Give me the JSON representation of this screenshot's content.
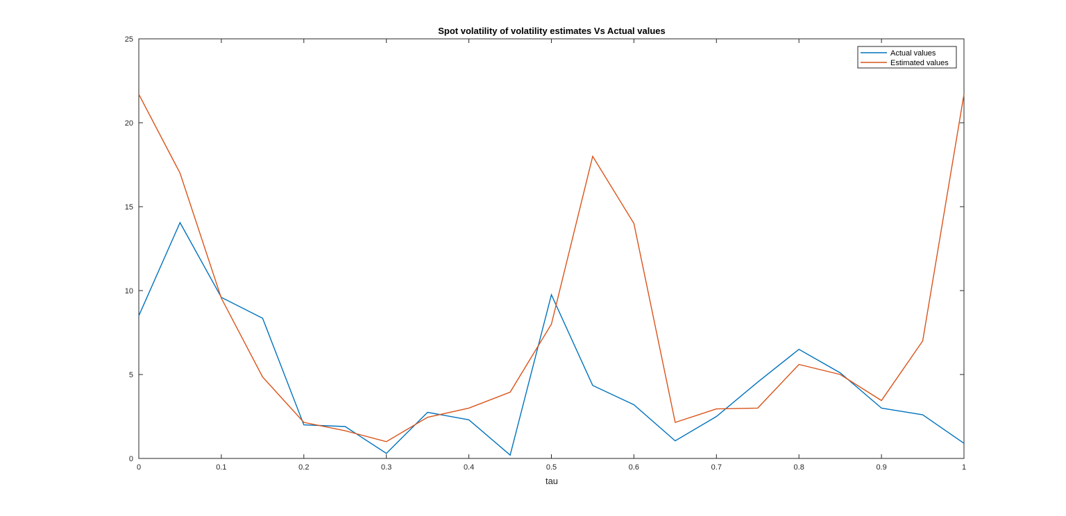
{
  "chart_data": {
    "type": "line",
    "title": "Spot volatility of volatility estimates Vs Actual values",
    "xlabel": "tau",
    "ylabel": "",
    "xlim": [
      0,
      1
    ],
    "ylim": [
      0,
      25
    ],
    "xticks": [
      0,
      0.1,
      0.2,
      0.3,
      0.4,
      0.5,
      0.6,
      0.7,
      0.8,
      0.9,
      1
    ],
    "xtick_labels": [
      "0",
      "0.1",
      "0.2",
      "0.3",
      "0.4",
      "0.5",
      "0.6",
      "0.7",
      "0.8",
      "0.9",
      "1"
    ],
    "yticks": [
      0,
      5,
      10,
      15,
      20,
      25
    ],
    "ytick_labels": [
      "0",
      "5",
      "10",
      "15",
      "20",
      "25"
    ],
    "grid": false,
    "legend_position": "top-right",
    "x": [
      0,
      0.05,
      0.1,
      0.15,
      0.2,
      0.25,
      0.3,
      0.35,
      0.4,
      0.45,
      0.5,
      0.55,
      0.6,
      0.65,
      0.7,
      0.75,
      0.8,
      0.85,
      0.9,
      0.95,
      1
    ],
    "series": [
      {
        "name": "Actual values",
        "color": "#0072BD",
        "values": [
          8.5,
          14.05,
          9.6,
          8.35,
          2.0,
          1.9,
          0.3,
          2.75,
          2.3,
          0.2,
          9.75,
          4.35,
          3.2,
          1.05,
          2.5,
          4.55,
          6.5,
          5.1,
          3.0,
          2.6,
          0.9
        ]
      },
      {
        "name": "Estimated values",
        "color": "#D95319",
        "values": [
          21.7,
          17.0,
          9.55,
          4.85,
          2.15,
          1.65,
          1.0,
          2.45,
          3.0,
          3.95,
          8.0,
          18.0,
          14.0,
          2.15,
          2.95,
          3.0,
          5.6,
          5.0,
          3.45,
          7.0,
          21.7
        ]
      }
    ]
  }
}
